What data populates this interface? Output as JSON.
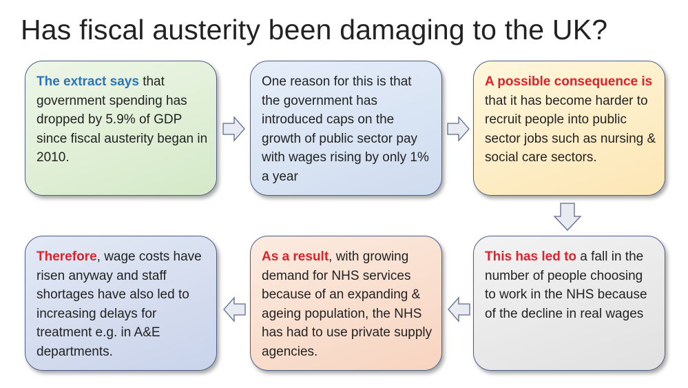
{
  "title": "Has fiscal austerity been damaging to the UK?",
  "colors": {
    "highlight_blue": "#2a74b8",
    "highlight_red": "#e0202a",
    "border": "#4a5e86"
  },
  "boxes": [
    {
      "highlight": "The extract says",
      "text": " that government spending has dropped by 5.9% of GDP since fiscal austerity began in 2010."
    },
    {
      "highlight": "",
      "text": "One reason for this is that the government has introduced caps on the growth of public sector pay with wages rising by only 1% a year"
    },
    {
      "highlight": "A possible consequence is",
      "text": " that it has become harder to recruit people into public sector jobs such as nursing & social care sectors."
    },
    {
      "highlight": "This has led to",
      "text": " a fall in the number of people choosing to work in the NHS because of the decline in real wages"
    },
    {
      "highlight": "As a result",
      "text": ", with growing demand for NHS services because of an expanding & ageing population, the NHS has had to use private supply agencies."
    },
    {
      "highlight": "Therefore",
      "text": ", wage costs have risen anyway and staff shortages have also led to increasing delays for treatment e.g. in A&E departments."
    }
  ],
  "arrows": [
    {
      "from": "box-1",
      "to": "box-2",
      "direction": "right"
    },
    {
      "from": "box-2",
      "to": "box-3",
      "direction": "right"
    },
    {
      "from": "box-3",
      "to": "box-4",
      "direction": "down"
    },
    {
      "from": "box-4",
      "to": "box-5",
      "direction": "left"
    },
    {
      "from": "box-5",
      "to": "box-6",
      "direction": "left"
    }
  ]
}
